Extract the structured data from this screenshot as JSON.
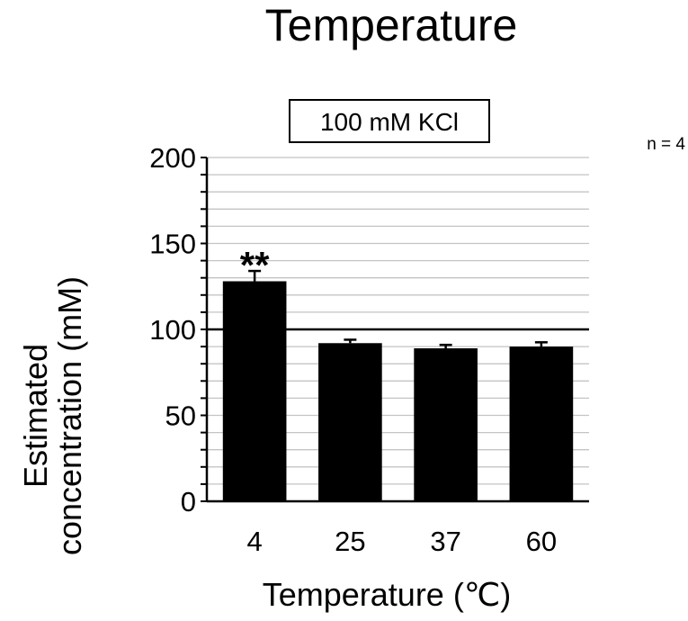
{
  "chart_data": {
    "type": "bar",
    "title": "Temperature",
    "condition_label": "100 mM KCl",
    "sample_note": "n = 4",
    "xlabel": "Temperature (℃)",
    "ylabel_line1": "Estimated",
    "ylabel_line2": "concentration (mM)",
    "categories": [
      "4",
      "25",
      "37",
      "60"
    ],
    "values": [
      128,
      92,
      89,
      90
    ],
    "errors": [
      6,
      2,
      2,
      2.5
    ],
    "annotations": [
      "**",
      "",
      "",
      ""
    ],
    "reference_line": 100,
    "ylim": [
      0,
      200
    ],
    "yticks": [
      0,
      50,
      100,
      150,
      200
    ],
    "grid": true,
    "bar_color": "#000000"
  }
}
